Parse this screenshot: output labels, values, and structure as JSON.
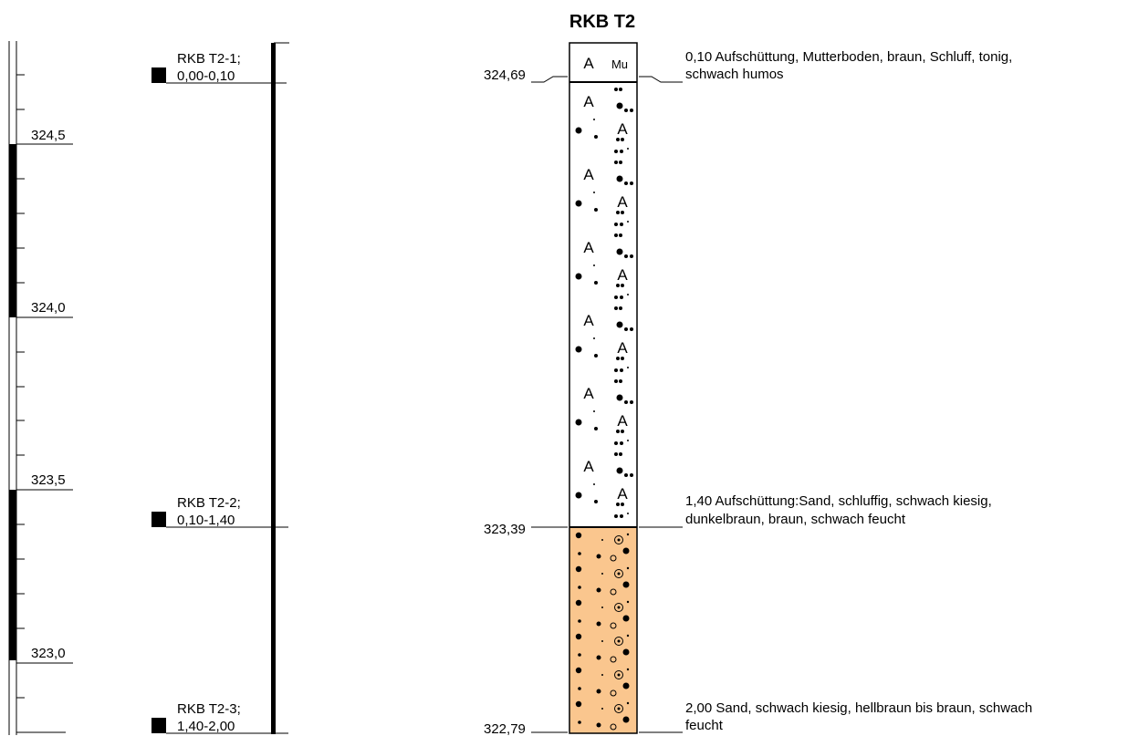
{
  "title": "RKB T2",
  "scale": {
    "labels": [
      "324,5",
      "324,0",
      "323,5",
      "323,0"
    ]
  },
  "samples": [
    {
      "name": "RKB T2-1;",
      "range": "0,00-0,10"
    },
    {
      "name": "RKB T2-2;",
      "range": "0,10-1,40"
    },
    {
      "name": "RKB T2-3;",
      "range": "1,40-2,00"
    }
  ],
  "elevations": [
    "324,69",
    "323,39",
    "322,79"
  ],
  "layers": [
    {
      "depth": "0,10",
      "line1": "Aufschüttung, Mutterboden, braun, Schluff, tonig,",
      "line2": "schwach humos",
      "symbols": [
        "A",
        "Mu"
      ]
    },
    {
      "depth": "1,40",
      "line1": "Aufschüttung:Sand, schluffig, schwach kiesig,",
      "line2": "dunkelbraun, braun, schwach feucht",
      "symbols": [
        "A"
      ]
    },
    {
      "depth": "2,00",
      "line1": "Sand, schwach kiesig, hellbraun bis braun, schwach",
      "line2": "feucht",
      "symbols": []
    }
  ],
  "colors": {
    "sand_fill": "#FAC68E",
    "ink": "#000000"
  }
}
